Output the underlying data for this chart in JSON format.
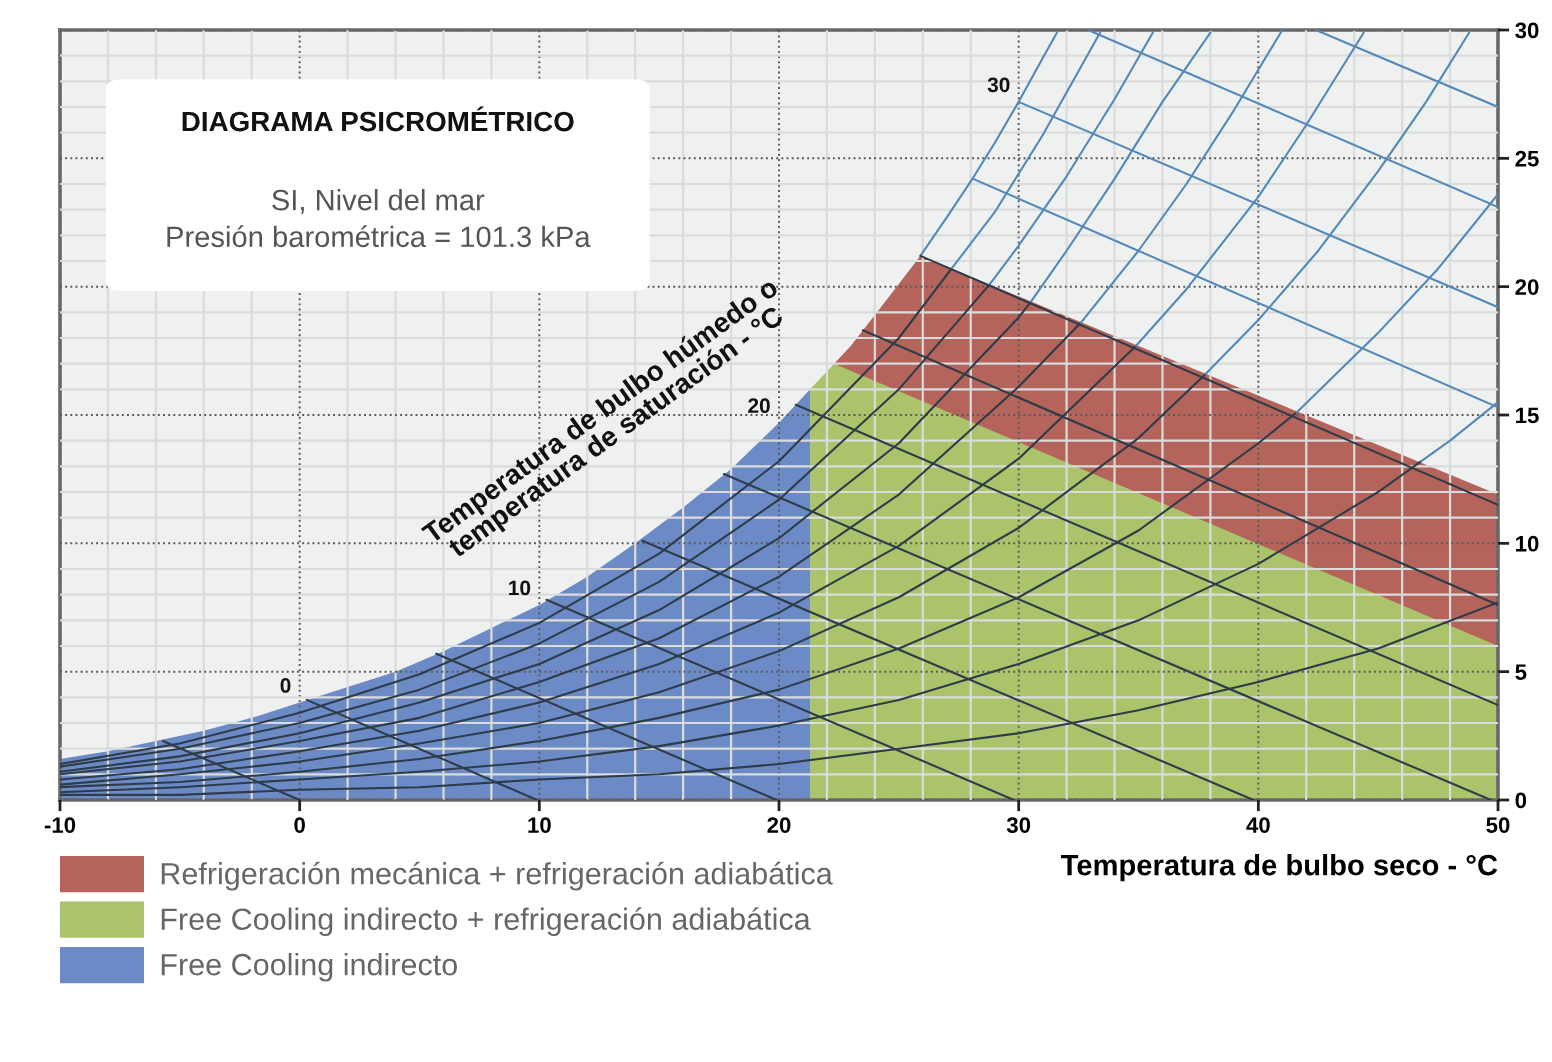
{
  "chart_data": {
    "type": "line",
    "title": "DIAGRAMA PSICROMÉTRICO",
    "subtitle": "SI, Nivel del mar\nPresión barométrica = 101.3 kPa",
    "xlabel": "Temperatura de bulbo seco - °C",
    "xlim": [
      -10,
      50
    ],
    "ylim": [
      0,
      30
    ],
    "xticks": [
      -10,
      {
        "value": -8,
        "label": null
      },
      {
        "value": -6,
        "label": null
      },
      {
        "value": -4,
        "label": null
      },
      {
        "value": -2,
        "label": null
      },
      0,
      {
        "value": 2,
        "label": null
      },
      {
        "value": 4,
        "label": null
      },
      {
        "value": 6,
        "label": null
      },
      {
        "value": 8,
        "label": null
      },
      10,
      {
        "value": 12,
        "label": null
      },
      {
        "value": 14,
        "label": null
      },
      {
        "value": 16,
        "label": null
      },
      {
        "value": 18,
        "label": null
      },
      20,
      {
        "value": 22,
        "label": null
      },
      {
        "value": 24,
        "label": null
      },
      {
        "value": 26,
        "label": null
      },
      {
        "value": 28,
        "label": null
      },
      30,
      {
        "value": 32,
        "label": null
      },
      {
        "value": 34,
        "label": null
      },
      {
        "value": 36,
        "label": null
      },
      {
        "value": 38,
        "label": null
      },
      40,
      {
        "value": 42,
        "label": null
      },
      {
        "value": 44,
        "label": null
      },
      {
        "value": 46,
        "label": null
      },
      {
        "value": 48,
        "label": null
      },
      50
    ],
    "yticks": [
      0,
      {
        "value": 1,
        "label": null
      },
      {
        "value": 2,
        "label": null
      },
      {
        "value": 3,
        "label": null
      },
      {
        "value": 4,
        "label": null
      },
      5,
      {
        "value": 6,
        "label": null
      },
      {
        "value": 7,
        "label": null
      },
      {
        "value": 8,
        "label": null
      },
      {
        "value": 9,
        "label": null
      },
      10,
      {
        "value": 11,
        "label": null
      },
      {
        "value": 12,
        "label": null
      },
      {
        "value": 13,
        "label": null
      },
      {
        "value": 14,
        "label": null
      },
      15,
      {
        "value": 16,
        "label": null
      },
      {
        "value": 17,
        "label": null
      },
      {
        "value": 18,
        "label": null
      },
      {
        "value": 19,
        "label": null
      },
      20,
      {
        "value": 21,
        "label": null
      },
      {
        "value": 22,
        "label": null
      },
      {
        "value": 23,
        "label": null
      },
      {
        "value": 24,
        "label": null
      },
      25,
      {
        "value": 26,
        "label": null
      },
      {
        "value": 27,
        "label": null
      },
      {
        "value": 28,
        "label": null
      },
      {
        "value": 29,
        "label": null
      },
      30
    ],
    "grid": true,
    "legend": "bottom left",
    "annotations": [
      "Temperatura de bulbo húmedo o\ntemperatura de saturación - °C",
      {
        "text": "0",
        "x": 0,
        "y": 3.8
      },
      {
        "text": "10",
        "x": 10,
        "y": 7.6
      },
      {
        "text": "20",
        "x": 20,
        "y": 14.7
      },
      {
        "text": "30",
        "x": 30,
        "y": 27.2
      }
    ],
    "series": [
      {
        "type": "area",
        "name": "Refrigeración mecánica + refrigeración adiabática",
        "color": "#b5645b",
        "x": [
          22.3,
          23,
          24,
          25,
          25.9,
          50
        ],
        "values": [
          17.0,
          17.7,
          18.9,
          20.1,
          21.2,
          11.9
        ]
      },
      {
        "type": "area",
        "name": "Free Cooling indirecto + refrigeración adiabática",
        "color": "#abc46b",
        "x": [
          21.3,
          21.8,
          22.3,
          50
        ],
        "values": [
          16.0,
          16.5,
          17.0,
          6.0
        ]
      },
      {
        "type": "area",
        "name": "Free Cooling indirecto",
        "color": "#6c8bc6",
        "x": [
          -10,
          -8,
          -6,
          -4,
          -2,
          0,
          2,
          4,
          6,
          8,
          10,
          12,
          14,
          16,
          18,
          20,
          21.3
        ],
        "values": [
          1.6,
          1.9,
          2.3,
          2.7,
          3.2,
          3.8,
          4.4,
          5.0,
          5.8,
          6.7,
          7.6,
          8.7,
          10.0,
          11.4,
          12.9,
          14.7,
          16.0
        ]
      },
      {
        "color": "#5289b9",
        "x": [
          25.9,
          27,
          28,
          29,
          30,
          31,
          31.6
        ],
        "values": [
          21.2,
          22.7,
          24.1,
          25.6,
          27.2,
          28.9,
          29.9
        ]
      },
      {
        "color": "#2e3b48",
        "x": [
          -10,
          -5,
          0,
          5,
          10,
          15,
          20,
          25,
          30,
          35,
          40,
          45,
          50
        ],
        "values": [
          0.2,
          0.2,
          0.4,
          0.5,
          0.8,
          1.0,
          1.4,
          2.0,
          2.6,
          3.5,
          4.6,
          5.9,
          7.7
        ]
      },
      {
        "color": "#2e3b48",
        "x": [
          -10,
          -5,
          0,
          5,
          10,
          15,
          20,
          25,
          30,
          35,
          40,
          45,
          46.8
        ],
        "values": [
          0.3,
          0.5,
          0.8,
          1.1,
          1.5,
          2.1,
          2.9,
          3.9,
          5.3,
          7.0,
          9.2,
          12.0,
          13.2
        ]
      },
      {
        "color": "#5289b9",
        "x": [
          46.8,
          48,
          50
        ],
        "values": [
          13.2,
          14.0,
          15.5
        ]
      },
      {
        "color": "#2e3b48",
        "x": [
          -10,
          -5,
          0,
          5,
          10,
          15,
          20,
          25,
          30,
          35,
          40,
          41.6
        ],
        "values": [
          0.5,
          0.7,
          1.1,
          1.6,
          2.3,
          3.2,
          4.3,
          5.9,
          7.9,
          10.5,
          13.9,
          15.1
        ]
      },
      {
        "color": "#5289b9",
        "x": [
          41.6,
          45,
          47.5,
          50
        ],
        "values": [
          15.1,
          18.2,
          20.7,
          23.6
        ]
      },
      {
        "color": "#2e3b48",
        "x": [
          -10,
          -5,
          0,
          5,
          10,
          15,
          20,
          25,
          30,
          35,
          37.8
        ],
        "values": [
          0.6,
          1.0,
          1.5,
          2.2,
          3.0,
          4.2,
          5.8,
          7.9,
          10.6,
          14.1,
          16.6
        ]
      },
      {
        "color": "#5289b9",
        "x": [
          37.8,
          40,
          42.5,
          45,
          47,
          48.8
        ],
        "values": [
          16.6,
          18.7,
          21.4,
          24.5,
          27.2,
          29.9
        ]
      },
      {
        "color": "#2e3b48",
        "x": [
          -10,
          -5,
          0,
          5,
          10,
          15,
          20,
          25,
          30,
          34.9
        ],
        "values": [
          0.8,
          1.2,
          1.9,
          2.7,
          3.8,
          5.3,
          7.3,
          9.9,
          13.3,
          17.7
        ]
      },
      {
        "color": "#5289b9",
        "x": [
          34.9,
          37,
          40,
          42,
          44.4
        ],
        "values": [
          17.7,
          19.9,
          23.5,
          26.3,
          29.9
        ]
      },
      {
        "color": "#2e3b48",
        "x": [
          -10,
          -5,
          0,
          5,
          10,
          15,
          20,
          25,
          30,
          32.6
        ],
        "values": [
          1.0,
          1.5,
          2.3,
          3.2,
          4.6,
          6.3,
          8.7,
          11.9,
          16.1,
          18.6
        ]
      },
      {
        "color": "#5289b9",
        "x": [
          32.6,
          35,
          37,
          39,
          41
        ],
        "values": [
          18.6,
          21.4,
          24.0,
          26.9,
          30.0
        ]
      },
      {
        "color": "#2e3b48",
        "x": [
          -10,
          -5,
          0,
          5,
          10,
          15,
          20,
          25,
          30,
          30.5
        ],
        "values": [
          1.1,
          1.7,
          2.6,
          3.8,
          5.3,
          7.4,
          10.2,
          13.9,
          18.8,
          19.4
        ]
      },
      {
        "color": "#5289b9",
        "x": [
          30.5,
          32,
          34,
          36,
          38
        ],
        "values": [
          19.4,
          21.4,
          24.2,
          27.2,
          29.9
        ]
      },
      {
        "color": "#2e3b48",
        "x": [
          -10,
          -5,
          0,
          5,
          10,
          15,
          20,
          25,
          28.8
        ],
        "values": [
          1.3,
          2.0,
          3.0,
          4.3,
          6.1,
          8.5,
          11.7,
          16.0,
          20.1
        ]
      },
      {
        "color": "#5289b9",
        "x": [
          28.8,
          30,
          32,
          34,
          35.6
        ],
        "values": [
          20.1,
          21.6,
          24.3,
          27.3,
          29.9
        ]
      },
      {
        "color": "#2e3b48",
        "x": [
          -10,
          -5,
          0,
          5,
          10,
          15,
          20,
          25,
          27.2
        ],
        "values": [
          1.4,
          2.2,
          3.4,
          4.9,
          6.9,
          9.6,
          13.2,
          18.0,
          20.7
        ]
      },
      {
        "color": "#5289b9",
        "x": [
          27.2,
          29,
          31,
          33.4
        ],
        "values": [
          20.7,
          22.9,
          25.9,
          29.9
        ]
      },
      {
        "color": "#2e3b48",
        "x": [
          -5.7,
          0
        ],
        "values": [
          2.3,
          0
        ]
      },
      {
        "color": "#2e3b48",
        "x": [
          0.3,
          9.9
        ],
        "values": [
          3.9,
          0
        ]
      },
      {
        "color": "#2e3b48",
        "x": [
          5.7,
          19.9
        ],
        "values": [
          5.7,
          0
        ]
      },
      {
        "color": "#2e3b48",
        "x": [
          10.3,
          29.8
        ],
        "values": [
          7.8,
          0
        ]
      },
      {
        "color": "#2e3b48",
        "x": [
          14.3,
          39.8
        ],
        "values": [
          10.1,
          0
        ]
      },
      {
        "color": "#2e3b48",
        "x": [
          17.7,
          49.7
        ],
        "values": [
          12.7,
          0
        ]
      },
      {
        "color": "#2e3b48",
        "x": [
          20.7,
          50
        ],
        "values": [
          15.4,
          3.7
        ]
      },
      {
        "color": "#2e3b48",
        "x": [
          23.5,
          50
        ],
        "values": [
          18.3,
          7.6
        ]
      },
      {
        "color": "#2e3b48",
        "x": [
          25.9,
          50
        ],
        "values": [
          21.2,
          11.5
        ]
      },
      {
        "color": "#5289b9",
        "x": [
          28.1,
          50
        ],
        "values": [
          24.2,
          15.3
        ]
      },
      {
        "color": "#5289b9",
        "x": [
          30.0,
          50
        ],
        "values": [
          27.2,
          19.2
        ]
      },
      {
        "color": "#5289b9",
        "x": [
          32.9,
          50
        ],
        "values": [
          30.0,
          23.1
        ]
      },
      {
        "color": "#5289b9",
        "x": [
          42.4,
          50
        ],
        "values": [
          30.0,
          27.0
        ]
      }
    ]
  }
}
